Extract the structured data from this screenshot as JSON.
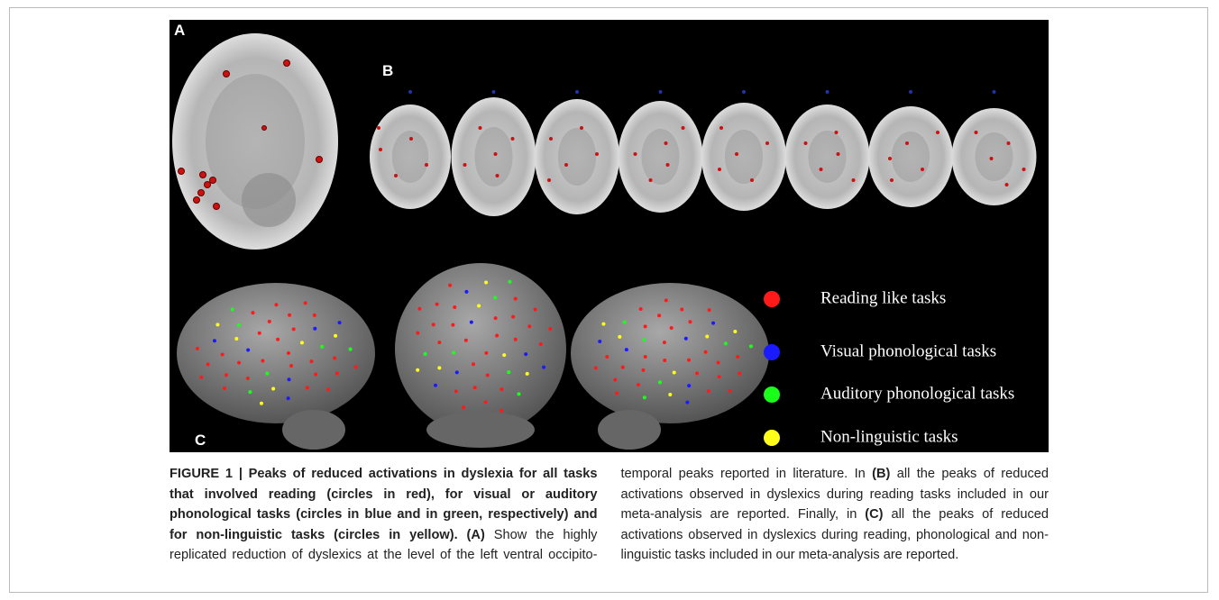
{
  "figure": {
    "panel_labels": [
      "A",
      "B",
      "C"
    ],
    "legend": [
      {
        "label": "Reading like tasks",
        "color": "#ff1a1a"
      },
      {
        "label": "Visual phonological tasks",
        "color": "#1a1aff"
      },
      {
        "label": "Auditory phonological tasks",
        "color": "#1aff1a"
      },
      {
        "label": "Non-linguistic tasks",
        "color": "#ffff1a"
      }
    ],
    "caption": [
      {
        "text": "FIGURE 1 | Peaks of reduced activations in dyslexia for all tasks that involved reading (circles in red), for visual or auditory phonological tasks (circles in blue and in green, respectively) and for non-linguistic tasks (circles in yellow).",
        "bold": true
      },
      {
        "text": " ",
        "bold": false
      },
      {
        "text": "(A)",
        "bold": true
      },
      {
        "text": " Show the highly replicated reduction of dyslexics at the level of the left ventral occipito-temporal peaks reported in literature. In ",
        "bold": false
      },
      {
        "text": "(B)",
        "bold": true
      },
      {
        "text": " all the peaks of reduced activations observed in dyslexics during reading tasks included in our meta-analysis are reported. Finally, in ",
        "bold": false
      },
      {
        "text": "(C)",
        "bold": true
      },
      {
        "text": " all the peaks of reduced activations observed in dyslexics during reading, phonological and non-linguistic tasks included in our meta-analysis are reported.",
        "bold": false
      }
    ]
  }
}
